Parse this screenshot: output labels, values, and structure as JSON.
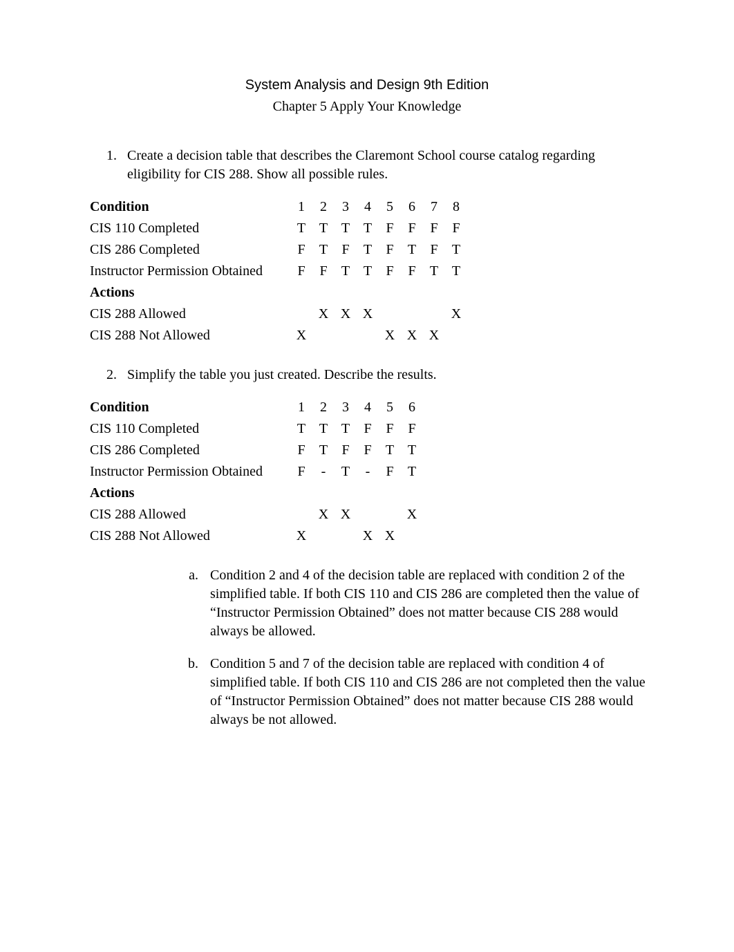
{
  "header": {
    "title": "System Analysis and Design 9th Edition",
    "subtitle": "Chapter 5 Apply Your Knowledge"
  },
  "q1": {
    "text": "Create a decision table that describes the Claremont School course catalog regarding eligibility for CIS 288. Show all possible rules."
  },
  "table1": {
    "col_count": 8,
    "rows": [
      {
        "label": "Condition",
        "bold": true,
        "cells": [
          "1",
          "2",
          "3",
          "4",
          "5",
          "6",
          "7",
          "8"
        ]
      },
      {
        "label": "CIS 110 Completed",
        "bold": false,
        "cells": [
          "T",
          "T",
          "T",
          "T",
          "F",
          "F",
          "F",
          "F"
        ]
      },
      {
        "label": "CIS 286 Completed",
        "bold": false,
        "cells": [
          "F",
          "T",
          "F",
          "T",
          "F",
          "T",
          "F",
          "T"
        ]
      },
      {
        "label": "Instructor Permission Obtained",
        "bold": false,
        "cells": [
          "F",
          "F",
          "T",
          "T",
          "F",
          "F",
          "T",
          "T"
        ]
      },
      {
        "label": "Actions",
        "bold": true,
        "cells": [
          "",
          "",
          "",
          "",
          "",
          "",
          "",
          ""
        ]
      },
      {
        "label": "CIS 288 Allowed",
        "bold": false,
        "cells": [
          "",
          "X",
          "X",
          "X",
          "",
          "",
          "",
          "X"
        ]
      },
      {
        "label": "CIS 288 Not Allowed",
        "bold": false,
        "cells": [
          "X",
          "",
          "",
          "",
          "X",
          "X",
          "X",
          ""
        ]
      }
    ]
  },
  "q2": {
    "text": "Simplify the table you just created. Describe the results."
  },
  "table2": {
    "col_count": 6,
    "rows": [
      {
        "label": "Condition",
        "bold": true,
        "cells": [
          "1",
          "2",
          "3",
          "4",
          "5",
          "6"
        ]
      },
      {
        "label": "CIS 110 Completed",
        "bold": false,
        "cells": [
          "T",
          "T",
          "T",
          "F",
          "F",
          "F"
        ]
      },
      {
        "label": "CIS 286 Completed",
        "bold": false,
        "cells": [
          "F",
          "T",
          "F",
          "F",
          "T",
          "T"
        ]
      },
      {
        "label": "Instructor Permission Obtained",
        "bold": false,
        "cells": [
          "F",
          "-",
          "T",
          "-",
          "F",
          "T"
        ]
      },
      {
        "label": "Actions",
        "bold": true,
        "cells": [
          "",
          "",
          "",
          "",
          "",
          ""
        ]
      },
      {
        "label": "CIS 288 Allowed",
        "bold": false,
        "cells": [
          "",
          "X",
          "X",
          "",
          "",
          "X"
        ]
      },
      {
        "label": "CIS 288 Not Allowed",
        "bold": false,
        "cells": [
          "X",
          "",
          "",
          "X",
          "X",
          ""
        ]
      }
    ]
  },
  "q2_sub": {
    "a": "Condition 2 and 4 of the decision table are replaced with condition 2 of the simplified table. If both CIS 110 and CIS 286 are completed then the value of “Instructor Permission Obtained” does not matter because CIS 288 would always be allowed.",
    "b": "Condition 5 and 7 of the decision table are replaced with condition 4 of simplified table. If both CIS 110 and CIS 286 are not completed then the value of “Instructor Permission Obtained” does not matter because CIS 288 would always be not allowed."
  },
  "style": {
    "body_font_size": 20,
    "title_font_family": "Arial",
    "body_font_family": "Times New Roman",
    "text_color": "#000000",
    "background_color": "#ffffff",
    "label_col_width": 290,
    "val_col_width": 32
  }
}
